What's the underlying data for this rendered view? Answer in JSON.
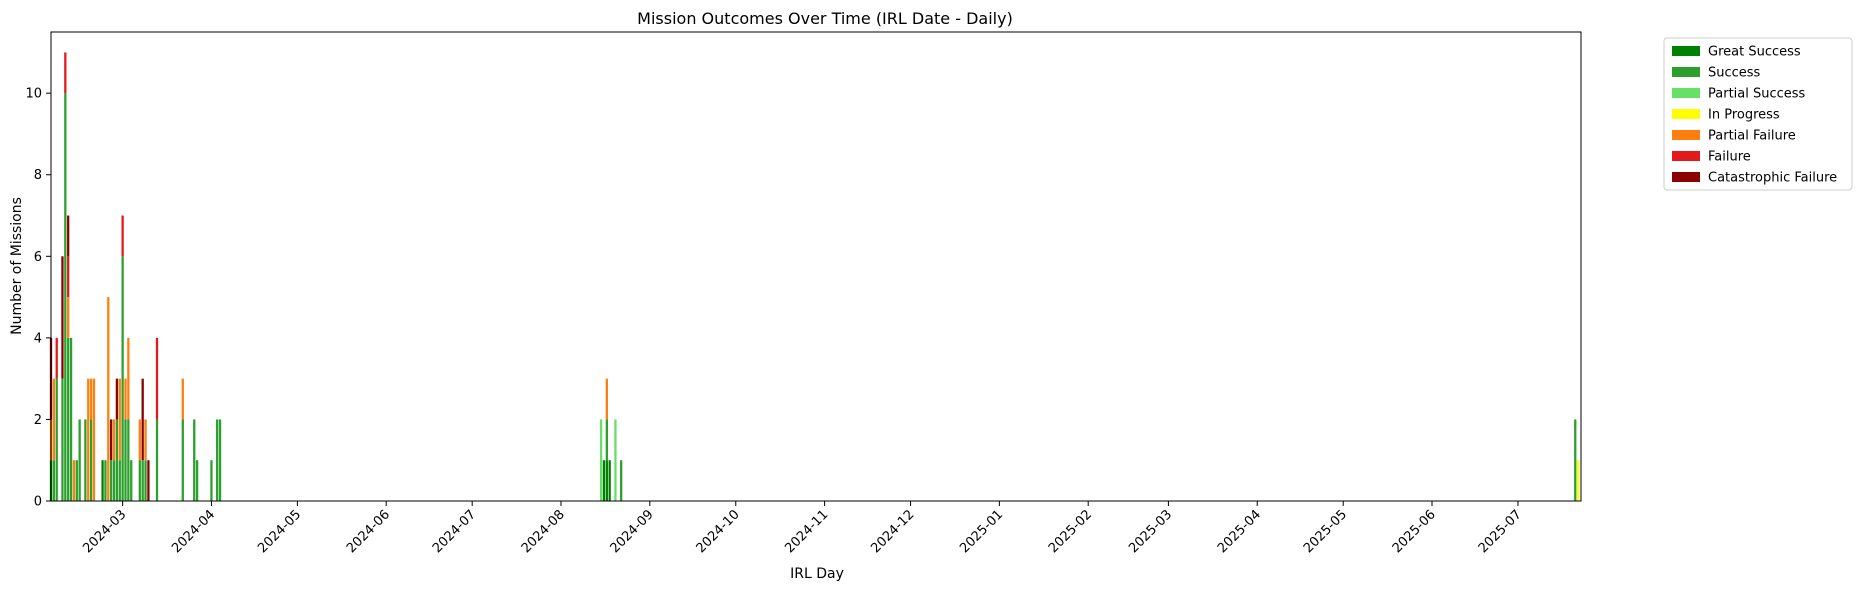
{
  "chart_data": {
    "type": "bar",
    "stacked": true,
    "title": "Mission Outcomes Over Time (IRL Date - Daily)",
    "xlabel": "IRL Day",
    "ylabel": "Number of Missions",
    "x_type": "date",
    "xlim": [
      "2024-02-05",
      "2025-07-23"
    ],
    "ylim": [
      0,
      11.5
    ],
    "yticks": [
      0,
      2,
      4,
      6,
      8,
      10
    ],
    "xticks": [
      "2024-03",
      "2024-04",
      "2024-05",
      "2024-06",
      "2024-07",
      "2024-08",
      "2024-09",
      "2024-10",
      "2024-11",
      "2024-12",
      "2025-01",
      "2025-02",
      "2025-03",
      "2025-04",
      "2025-05",
      "2025-06",
      "2025-07"
    ],
    "grid": false,
    "legend_position": "outside-top-right",
    "series": [
      {
        "name": "Great Success",
        "color": "#008000"
      },
      {
        "name": "Success",
        "color": "#2ca02c"
      },
      {
        "name": "Partial Success",
        "color": "#66e066"
      },
      {
        "name": "In Progress",
        "color": "#ffff00"
      },
      {
        "name": "Partial Failure",
        "color": "#ff7f0e"
      },
      {
        "name": "Failure",
        "color": "#e31a1c"
      },
      {
        "name": "Catastrophic Failure",
        "color": "#8b0000"
      }
    ],
    "bars": [
      {
        "date": "2024-02-05",
        "stack": [
          1,
          0,
          0,
          0,
          1,
          0,
          2
        ]
      },
      {
        "date": "2024-02-06",
        "stack": [
          0,
          1,
          0,
          0,
          2,
          0,
          0
        ]
      },
      {
        "date": "2024-02-07",
        "stack": [
          0,
          3,
          0,
          0,
          0,
          1,
          0
        ]
      },
      {
        "date": "2024-02-09",
        "stack": [
          0,
          3,
          0,
          0,
          0,
          0,
          3
        ]
      },
      {
        "date": "2024-02-10",
        "stack": [
          0,
          10,
          0,
          0,
          0,
          1,
          0
        ]
      },
      {
        "date": "2024-02-11",
        "stack": [
          0,
          4,
          0,
          0,
          1,
          1,
          1
        ]
      },
      {
        "date": "2024-02-12",
        "stack": [
          0,
          4,
          0,
          0,
          0,
          0,
          0
        ]
      },
      {
        "date": "2024-02-13",
        "stack": [
          0,
          0,
          0,
          0,
          1,
          0,
          0
        ]
      },
      {
        "date": "2024-02-14",
        "stack": [
          0,
          1,
          0,
          0,
          0,
          0,
          0
        ]
      },
      {
        "date": "2024-02-15",
        "stack": [
          0,
          2,
          0,
          0,
          0,
          0,
          0
        ]
      },
      {
        "date": "2024-02-17",
        "stack": [
          0,
          2,
          0,
          0,
          0,
          0,
          0
        ]
      },
      {
        "date": "2024-02-18",
        "stack": [
          0,
          0,
          0,
          0,
          3,
          0,
          0
        ]
      },
      {
        "date": "2024-02-19",
        "stack": [
          0,
          2,
          0,
          0,
          1,
          0,
          0
        ]
      },
      {
        "date": "2024-02-20",
        "stack": [
          0,
          0,
          0,
          0,
          3,
          0,
          0
        ]
      },
      {
        "date": "2024-02-23",
        "stack": [
          1,
          0,
          0,
          0,
          0,
          0,
          0
        ]
      },
      {
        "date": "2024-02-24",
        "stack": [
          0,
          1,
          0,
          0,
          0,
          0,
          0
        ]
      },
      {
        "date": "2024-02-25",
        "stack": [
          0,
          0,
          0,
          0,
          5,
          0,
          0
        ]
      },
      {
        "date": "2024-02-26",
        "stack": [
          0,
          1,
          0,
          0,
          0,
          0,
          1
        ]
      },
      {
        "date": "2024-02-27",
        "stack": [
          0,
          1,
          0,
          0,
          1,
          0,
          0
        ]
      },
      {
        "date": "2024-02-28",
        "stack": [
          0,
          2,
          0,
          0,
          0,
          0,
          1
        ]
      },
      {
        "date": "2024-02-29",
        "stack": [
          0,
          1,
          0,
          0,
          2,
          0,
          0
        ]
      },
      {
        "date": "2024-03-01",
        "stack": [
          0,
          6,
          0,
          0,
          0,
          1,
          0
        ]
      },
      {
        "date": "2024-03-02",
        "stack": [
          0,
          2,
          0,
          0,
          1,
          0,
          0
        ]
      },
      {
        "date": "2024-03-03",
        "stack": [
          0,
          2,
          0,
          0,
          2,
          0,
          0
        ]
      },
      {
        "date": "2024-03-04",
        "stack": [
          0,
          1,
          0,
          0,
          0,
          0,
          0
        ]
      },
      {
        "date": "2024-03-05",
        "stack": [
          0,
          0,
          0,
          0,
          0,
          0,
          0
        ]
      },
      {
        "date": "2024-03-07",
        "stack": [
          0,
          1,
          0,
          0,
          1,
          0,
          0
        ]
      },
      {
        "date": "2024-03-08",
        "stack": [
          0,
          1,
          0,
          0,
          0,
          0,
          2
        ]
      },
      {
        "date": "2024-03-09",
        "stack": [
          0,
          1,
          0,
          0,
          1,
          0,
          0
        ]
      },
      {
        "date": "2024-03-10",
        "stack": [
          0,
          0,
          0,
          0,
          0,
          0,
          1
        ]
      },
      {
        "date": "2024-03-13",
        "stack": [
          0,
          2,
          0,
          0,
          0,
          2,
          0
        ]
      },
      {
        "date": "2024-03-22",
        "stack": [
          0,
          2,
          0,
          0,
          1,
          0,
          0
        ]
      },
      {
        "date": "2024-03-26",
        "stack": [
          0,
          2,
          0,
          0,
          0,
          0,
          0
        ]
      },
      {
        "date": "2024-03-27",
        "stack": [
          0,
          1,
          0,
          0,
          0,
          0,
          0
        ]
      },
      {
        "date": "2024-04-01",
        "stack": [
          0,
          1,
          0,
          0,
          0,
          0,
          0
        ]
      },
      {
        "date": "2024-04-03",
        "stack": [
          0,
          2,
          0,
          0,
          0,
          0,
          0
        ]
      },
      {
        "date": "2024-04-04",
        "stack": [
          0,
          2,
          0,
          0,
          0,
          0,
          0
        ]
      },
      {
        "date": "2024-08-15",
        "stack": [
          0,
          0,
          2,
          0,
          0,
          0,
          0
        ]
      },
      {
        "date": "2024-08-16",
        "stack": [
          1,
          0,
          0,
          0,
          0,
          0,
          0
        ]
      },
      {
        "date": "2024-08-17",
        "stack": [
          1,
          1,
          0,
          0,
          1,
          0,
          0
        ]
      },
      {
        "date": "2024-08-18",
        "stack": [
          1,
          0,
          0,
          0,
          0,
          0,
          0
        ]
      },
      {
        "date": "2024-08-20",
        "stack": [
          0,
          0,
          2,
          0,
          0,
          0,
          0
        ]
      },
      {
        "date": "2024-08-22",
        "stack": [
          0,
          1,
          0,
          0,
          0,
          0,
          0
        ]
      },
      {
        "date": "2025-07-21",
        "stack": [
          0,
          2,
          0,
          0,
          0,
          0,
          0
        ]
      },
      {
        "date": "2025-07-22",
        "stack": [
          0,
          0,
          0,
          1,
          0,
          0,
          0
        ]
      }
    ]
  }
}
